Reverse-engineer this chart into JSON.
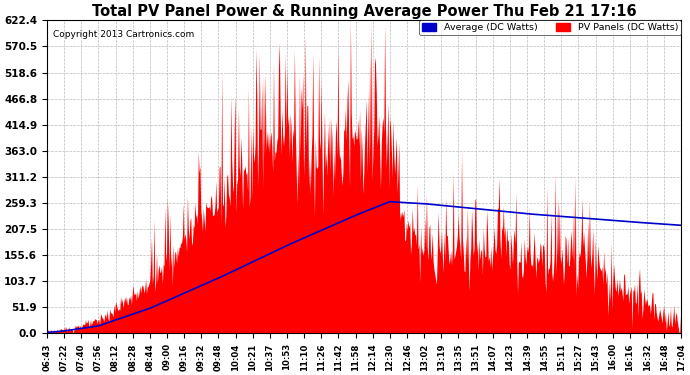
{
  "title": "Total PV Panel Power & Running Average Power Thu Feb 21 17:16",
  "copyright": "Copyright 2013 Cartronics.com",
  "legend_avg": "Average (DC Watts)",
  "legend_pv": "PV Panels (DC Watts)",
  "ymin": 0.0,
  "ymax": 622.4,
  "yticks": [
    0.0,
    51.9,
    103.7,
    155.6,
    207.5,
    259.3,
    311.2,
    363.0,
    414.9,
    466.8,
    518.6,
    570.5,
    622.4
  ],
  "bg_color": "#ffffff",
  "plot_bg_color": "#ffffff",
  "grid_color": "#bbbbbb",
  "fill_color": "#ff0000",
  "line_color": "#0000cc",
  "xtick_labels": [
    "06:43",
    "07:22",
    "07:40",
    "07:56",
    "08:12",
    "08:28",
    "08:44",
    "09:00",
    "09:16",
    "09:32",
    "09:48",
    "10:04",
    "10:21",
    "10:37",
    "10:53",
    "11:10",
    "11:26",
    "11:42",
    "11:58",
    "12:14",
    "12:30",
    "12:46",
    "13:02",
    "13:19",
    "13:35",
    "13:51",
    "14:07",
    "14:23",
    "14:39",
    "14:55",
    "15:11",
    "15:27",
    "15:43",
    "16:00",
    "16:16",
    "16:32",
    "16:48",
    "17:04"
  ]
}
